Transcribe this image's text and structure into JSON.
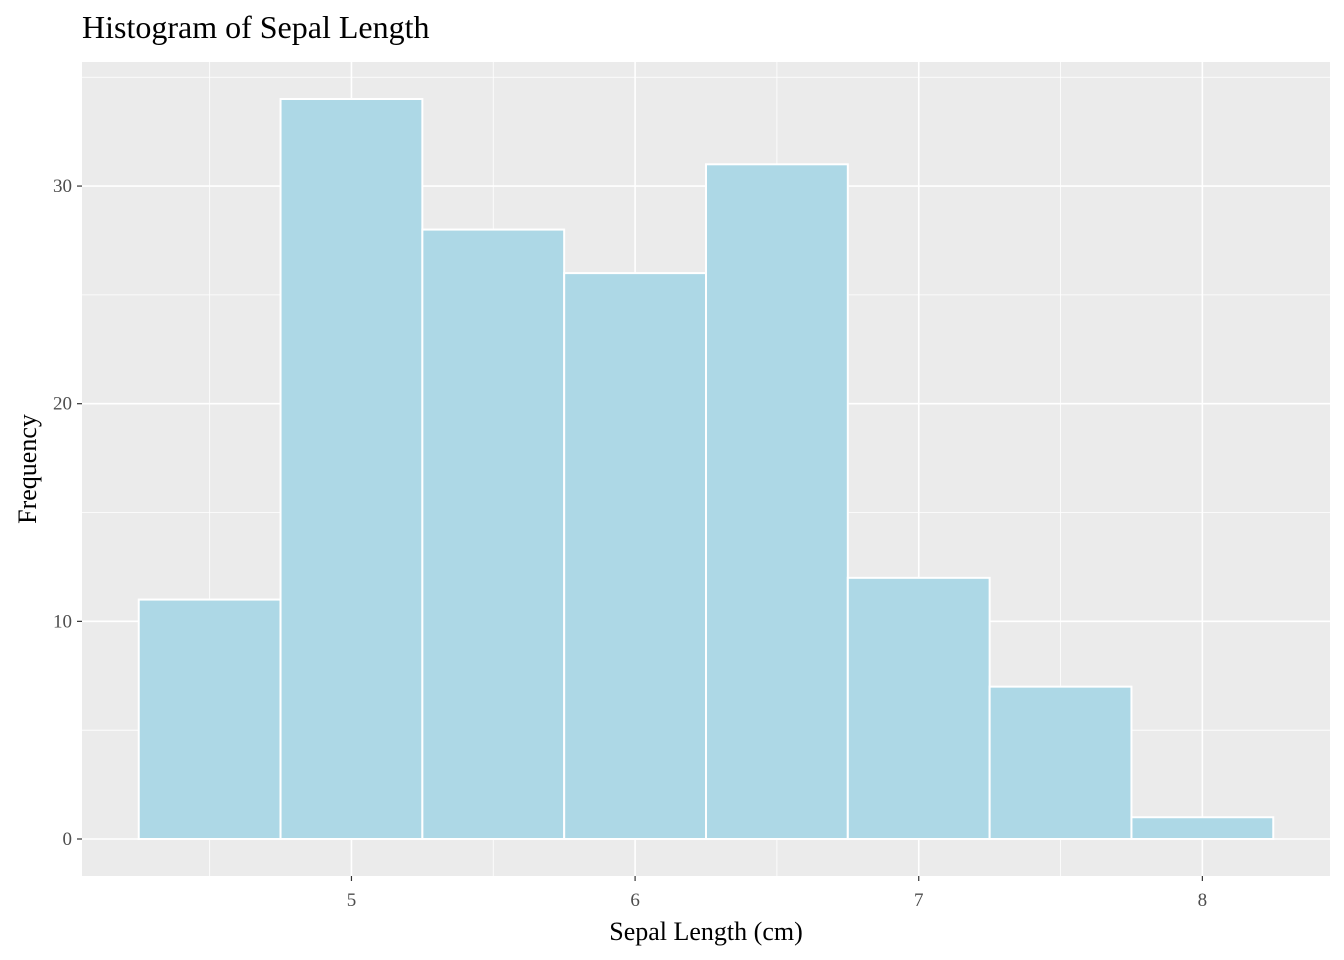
{
  "chart_data": {
    "type": "bar",
    "title": "Histogram of Sepal Length",
    "xlabel": "Sepal Length (cm)",
    "ylabel": "Frequency",
    "bin_width": 0.5,
    "bins": [
      {
        "x_start": 4.25,
        "x_end": 4.75,
        "count": 11
      },
      {
        "x_start": 4.75,
        "x_end": 5.25,
        "count": 34
      },
      {
        "x_start": 5.25,
        "x_end": 5.75,
        "count": 28
      },
      {
        "x_start": 5.75,
        "x_end": 6.25,
        "count": 26
      },
      {
        "x_start": 6.25,
        "x_end": 6.75,
        "count": 31
      },
      {
        "x_start": 6.75,
        "x_end": 7.25,
        "count": 12
      },
      {
        "x_start": 7.25,
        "x_end": 7.75,
        "count": 7
      },
      {
        "x_start": 7.75,
        "x_end": 8.25,
        "count": 1
      }
    ],
    "xlim": [
      4.05,
      8.45
    ],
    "ylim": [
      -1.7,
      35.7
    ],
    "x_ticks": [
      5,
      6,
      7,
      8
    ],
    "x_tick_labels": [
      "5",
      "6",
      "7",
      "8"
    ],
    "x_minor_ticks": [
      4.5,
      5.5,
      6.5,
      7.5
    ],
    "y_ticks": [
      0,
      10,
      20,
      30
    ],
    "y_tick_labels": [
      "0",
      "10",
      "20",
      "30"
    ],
    "y_minor_ticks": [
      5,
      15,
      25,
      35
    ],
    "grid": true,
    "legend": "none",
    "colors": {
      "bar_fill": "#add8e6",
      "bar_outline": "#ffffff",
      "panel_background": "#ebebeb",
      "grid": "#ffffff"
    }
  }
}
